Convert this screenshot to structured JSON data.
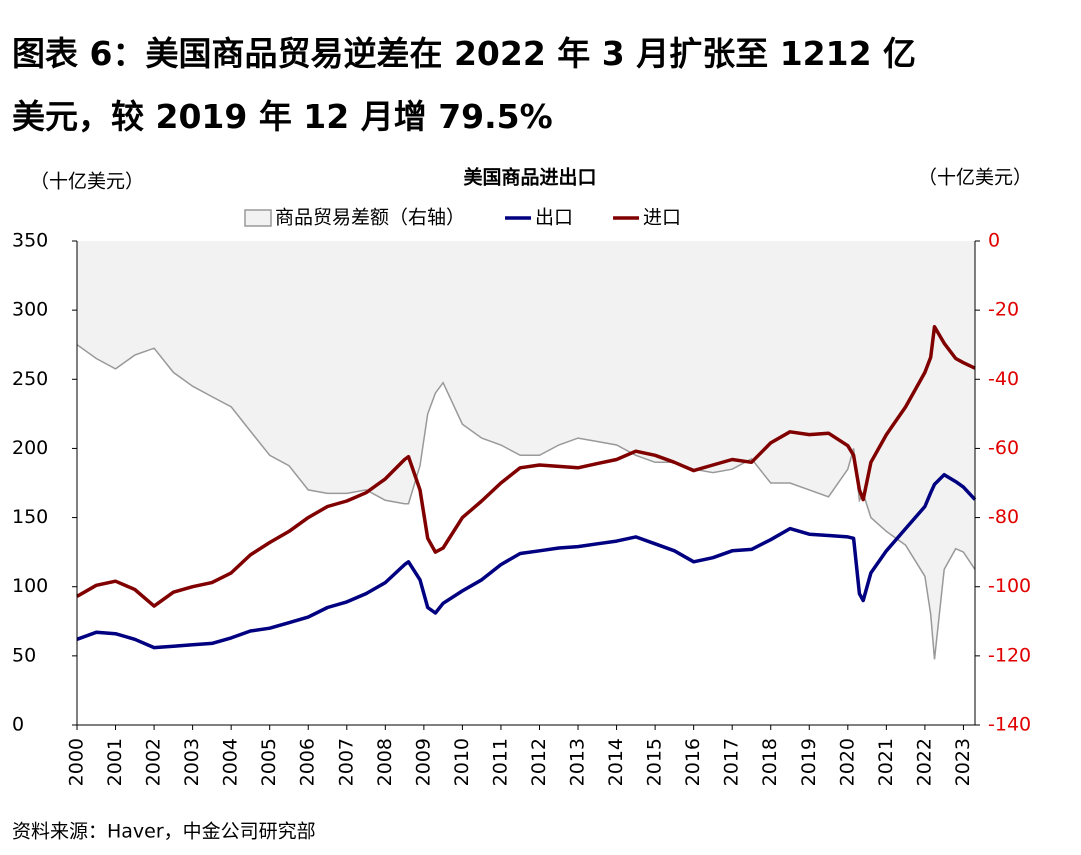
{
  "page_title": "图表 6：美国商品贸易逆差在 2022 年 3 月扩张至 1212 亿美元，较 2019 年 12 月增 79.5%",
  "source": "资料来源：Haver，中金公司研究部",
  "chart_data": {
    "type": "line",
    "title": "美国商品进出口",
    "y_label": "（十亿美元）",
    "y2_label": "（十亿美元）",
    "x": [
      2000,
      2000.5,
      2001,
      2001.5,
      2002,
      2002.5,
      2003,
      2003.5,
      2004,
      2004.5,
      2005,
      2005.5,
      2006,
      2006.5,
      2007,
      2007.5,
      2008,
      2008.5,
      2008.6,
      2008.9,
      2009.1,
      2009.3,
      2009.5,
      2010,
      2010.5,
      2011,
      2011.5,
      2012,
      2012.5,
      2013,
      2013.5,
      2014,
      2014.5,
      2015,
      2015.5,
      2016,
      2016.5,
      2017,
      2017.5,
      2018,
      2018.5,
      2019,
      2019.5,
      2020,
      2020.15,
      2020.3,
      2020.4,
      2020.6,
      2021,
      2021.5,
      2022,
      2022.15,
      2022.25,
      2022.5,
      2022.8,
      2023,
      2023.3
    ],
    "series": [
      {
        "name": "商品贸易差额（右轴）",
        "type": "area",
        "axis": "y2",
        "color": "#999999",
        "fill": "#f2f2f2",
        "values": [
          -30,
          -34,
          -37,
          -33,
          -31,
          -38,
          -42,
          -45,
          -48,
          -55,
          -62,
          -65,
          -72,
          -73,
          -73,
          -72,
          -75,
          -76,
          -76,
          -65,
          -50,
          -44,
          -41,
          -53,
          -57,
          -59,
          -62,
          -62,
          -59,
          -57,
          -58,
          -59,
          -62,
          -64,
          -64,
          -66,
          -67,
          -66,
          -63,
          -70,
          -70,
          -72,
          -74,
          -66,
          -60,
          -75,
          -73,
          -80,
          -84,
          -88,
          -97,
          -108,
          -121,
          -95,
          -89,
          -90,
          -95
        ]
      },
      {
        "name": "出口",
        "type": "line",
        "color": "#000080",
        "values": [
          62,
          67,
          66,
          62,
          56,
          57,
          58,
          59,
          63,
          68,
          70,
          74,
          78,
          85,
          89,
          95,
          103,
          116,
          118,
          105,
          85,
          81,
          88,
          97,
          105,
          116,
          124,
          126,
          128,
          129,
          131,
          133,
          136,
          131,
          126,
          118,
          121,
          126,
          127,
          134,
          142,
          138,
          137,
          136,
          135,
          95,
          90,
          110,
          126,
          142,
          158,
          168,
          174,
          181,
          176,
          172,
          163
        ]
      },
      {
        "name": "进口",
        "type": "line",
        "color": "#800000",
        "values": [
          93,
          101,
          104,
          98,
          86,
          96,
          100,
          103,
          110,
          123,
          132,
          140,
          150,
          158,
          162,
          168,
          178,
          192,
          194,
          170,
          135,
          125,
          128,
          150,
          162,
          175,
          186,
          188,
          187,
          186,
          189,
          192,
          198,
          195,
          190,
          184,
          188,
          192,
          190,
          204,
          212,
          210,
          211,
          202,
          195,
          170,
          163,
          190,
          210,
          230,
          255,
          266,
          288,
          276,
          265,
          262,
          258
        ]
      }
    ],
    "xlim": [
      2000,
      2023.3
    ],
    "xticks": [
      2000,
      2001,
      2002,
      2003,
      2004,
      2005,
      2006,
      2007,
      2008,
      2009,
      2010,
      2011,
      2012,
      2013,
      2014,
      2015,
      2016,
      2017,
      2018,
      2019,
      2020,
      2021,
      2022,
      2023
    ],
    "ylim": [
      0,
      350
    ],
    "yticks": [
      0,
      50,
      100,
      150,
      200,
      250,
      300,
      350
    ],
    "y2lim": [
      -140,
      0
    ],
    "y2ticks": [
      -140,
      -120,
      -100,
      -80,
      -60,
      -40,
      -20,
      0
    ],
    "y2tick_color": "#e00000",
    "legend": "top"
  }
}
